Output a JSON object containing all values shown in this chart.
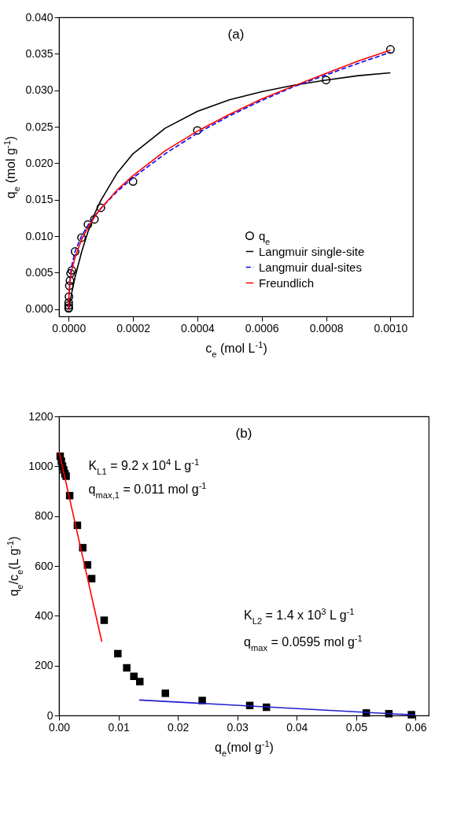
{
  "chart_data": [
    {
      "type": "line",
      "title": "(a)",
      "xlabel": "c$_{e}$ (mol L$^{-1}$)",
      "ylabel": "q$_{e}$ (mol g$^{-1}$)",
      "xlim": [
        -3e-05,
        0.00107
      ],
      "ylim": [
        -0.001,
        0.04
      ],
      "xticks": [
        {
          "value": 0,
          "label": "0.0000"
        },
        {
          "value": 0.0002,
          "label": "0.0002"
        },
        {
          "value": 0.0004,
          "label": "0.0004"
        },
        {
          "value": 0.0006,
          "label": "0.0006"
        },
        {
          "value": 0.0008,
          "label": "0.0008"
        },
        {
          "value": 0.001,
          "label": "0.0010"
        }
      ],
      "yticks": [
        {
          "value": 0,
          "label": "0.000"
        },
        {
          "value": 0.005,
          "label": "0.005"
        },
        {
          "value": 0.01,
          "label": "0.010"
        },
        {
          "value": 0.015,
          "label": "0.015"
        },
        {
          "value": 0.02,
          "label": "0.020"
        },
        {
          "value": 0.025,
          "label": "0.025"
        },
        {
          "value": 0.03,
          "label": "0.030"
        },
        {
          "value": 0.035,
          "label": "0.035"
        },
        {
          "value": 0.04,
          "label": "0.040"
        }
      ],
      "grid": false,
      "legend": "bottom right",
      "series": [
        {
          "name": "q$_{e}$",
          "type": "scatter",
          "marker": "circle",
          "color": "#000000",
          "x": [
            0,
            0,
            0,
            0,
            1e-06,
            2e-06,
            4e-06,
            6e-06,
            1e-05,
            2e-05,
            4e-05,
            6e-05,
            8e-05,
            0.0001,
            0.0002,
            0.0004,
            0.0008,
            0.001
          ],
          "values": [
            0.0001,
            0.0002,
            0.0005,
            0.0009,
            0.0017,
            0.0032,
            0.0039,
            0.0049,
            0.0053,
            0.0079,
            0.0098,
            0.0116,
            0.0123,
            0.0139,
            0.0175,
            0.0245,
            0.0314,
            0.0356
          ]
        },
        {
          "name": "Langmuir single-site",
          "marker": "none",
          "line_style": "solid",
          "color": "#000000",
          "x": [
            0,
            1e-05,
            2e-05,
            4e-05,
            6e-05,
            8e-05,
            0.0001,
            0.00015,
            0.0002,
            0.0003,
            0.0004,
            0.0005,
            0.0006,
            0.0007,
            0.0008,
            0.0009,
            0.001
          ],
          "values": [
            0,
            0.0023,
            0.0044,
            0.0078,
            0.0106,
            0.013,
            0.0149,
            0.0186,
            0.0213,
            0.0248,
            0.0271,
            0.0287,
            0.0298,
            0.0307,
            0.0314,
            0.032,
            0.0324
          ]
        },
        {
          "name": "Langmuir dual-sites",
          "marker": "none",
          "line_style": "dashed",
          "color": "#0000ff",
          "x": [
            0,
            1e-06,
            5e-06,
            1e-05,
            2e-05,
            4e-05,
            6e-05,
            8e-05,
            0.0001,
            0.00015,
            0.0002,
            0.0003,
            0.0004,
            0.0005,
            0.0006,
            0.0007,
            0.0008,
            0.0009,
            0.001
          ],
          "values": [
            0,
            0.0018,
            0.0045,
            0.006,
            0.0079,
            0.01,
            0.0115,
            0.0127,
            0.0138,
            0.0161,
            0.018,
            0.0213,
            0.0241,
            0.0265,
            0.0286,
            0.0305,
            0.0321,
            0.0337,
            0.0352
          ]
        },
        {
          "name": "Freundlich",
          "marker": "none",
          "line_style": "solid",
          "color": "#ff0000",
          "x": [
            0,
            1e-06,
            5e-06,
            1e-05,
            2e-05,
            4e-05,
            6e-05,
            8e-05,
            0.0001,
            0.00015,
            0.0002,
            0.0003,
            0.0004,
            0.0005,
            0.0006,
            0.0007,
            0.0008,
            0.0009,
            0.001
          ],
          "values": [
            0,
            0.0021,
            0.004,
            0.0054,
            0.0071,
            0.0095,
            0.0112,
            0.0126,
            0.0138,
            0.0163,
            0.0183,
            0.0217,
            0.0244,
            0.0267,
            0.0288,
            0.0306,
            0.0323,
            0.034,
            0.0355
          ]
        }
      ]
    },
    {
      "type": "scatter",
      "title": "(b)",
      "xlabel": "q$_{e}$(mol g$^{-1}$)",
      "ylabel": "q$_{e}$/c$_{e}$(L g$^{-1}$)",
      "xlim": [
        0,
        0.0622
      ],
      "ylim": [
        0,
        1200
      ],
      "xticks": [
        {
          "value": 0,
          "label": "0.00"
        },
        {
          "value": 0.01,
          "label": "0.01"
        },
        {
          "value": 0.02,
          "label": "0.02"
        },
        {
          "value": 0.03,
          "label": "0.03"
        },
        {
          "value": 0.04,
          "label": "0.04"
        },
        {
          "value": 0.05,
          "label": "0.05"
        },
        {
          "value": 0.06,
          "label": "0.06"
        }
      ],
      "yticks": [
        0,
        200,
        400,
        600,
        800,
        1000,
        1200
      ],
      "grid": false,
      "annotations": [
        "K$_{L1}$ = 9.2 x 10$^{4}$ L g$^{-1}$",
        "q$_{max,1}$ = 0.011 mol g$^{-1}$",
        "K$_{L2}$ = 1.4 x 10$^{3}$ L g$^{-1}$",
        "q$_{max}$ = 0.0595 mol g$^{-1}$"
      ],
      "series": [
        {
          "marker": "square",
          "color": "#000000",
          "x": [
            0.0002,
            0.0004,
            0.0006,
            0.0008,
            0.001,
            0.0012,
            0.0018,
            0.0031,
            0.004,
            0.0048,
            0.0055,
            0.0076,
            0.0099,
            0.0114,
            0.0126,
            0.0136,
            0.0179,
            0.0241,
            0.0321,
            0.0349,
            0.0517,
            0.0555,
            0.0593
          ],
          "values": [
            1040,
            1020,
            1000,
            985,
            970,
            960,
            882,
            763,
            673,
            604,
            549,
            382,
            248,
            191,
            157,
            136,
            89,
            60,
            40,
            33,
            10,
            7,
            3
          ]
        },
        {
          "type": "line",
          "marker": "none",
          "line_style": "solid",
          "color": "#ff0000",
          "x": [
            0,
            0.0072
          ],
          "values": [
            1059,
            296
          ]
        },
        {
          "type": "line",
          "marker": "none",
          "line_style": "solid",
          "color": "#1c1cd0",
          "x": [
            0.0135,
            0.0598
          ],
          "values": [
            62,
            2
          ]
        }
      ]
    }
  ]
}
